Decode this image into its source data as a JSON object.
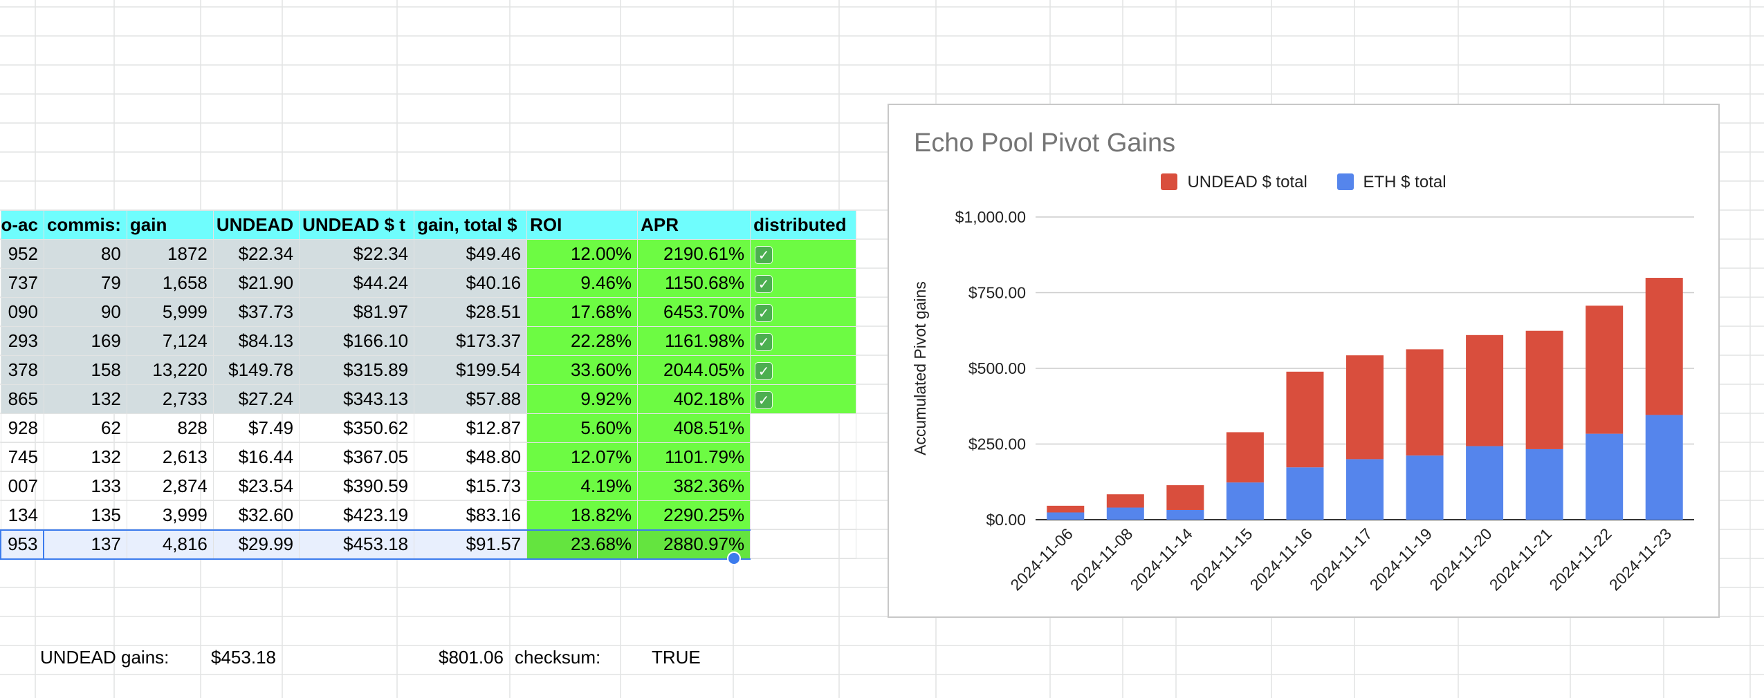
{
  "sheet": {
    "headers": [
      "o-ac",
      "commis:",
      "gain",
      "UNDEAD",
      "UNDEAD $ t",
      "gain, total $",
      "ROI",
      "APR",
      "distributed"
    ],
    "rows": [
      {
        "a": "952",
        "b": "80",
        "c": "1872",
        "d": "$22.34",
        "e": "$22.34",
        "f": "$49.46",
        "roi": "12.00%",
        "apr": "2190.61%",
        "dist": true
      },
      {
        "a": "737",
        "b": "79",
        "c": "1,658",
        "d": "$21.90",
        "e": "$44.24",
        "f": "$40.16",
        "roi": "9.46%",
        "apr": "1150.68%",
        "dist": true
      },
      {
        "a": "090",
        "b": "90",
        "c": "5,999",
        "d": "$37.73",
        "e": "$81.97",
        "f": "$28.51",
        "roi": "17.68%",
        "apr": "6453.70%",
        "dist": true
      },
      {
        "a": "293",
        "b": "169",
        "c": "7,124",
        "d": "$84.13",
        "e": "$166.10",
        "f": "$173.37",
        "roi": "22.28%",
        "apr": "1161.98%",
        "dist": true
      },
      {
        "a": "378",
        "b": "158",
        "c": "13,220",
        "d": "$149.78",
        "e": "$315.89",
        "f": "$199.54",
        "roi": "33.60%",
        "apr": "2044.05%",
        "dist": true
      },
      {
        "a": "865",
        "b": "132",
        "c": "2,733",
        "d": "$27.24",
        "e": "$343.13",
        "f": "$57.88",
        "roi": "9.92%",
        "apr": "402.18%",
        "dist": true
      },
      {
        "a": "928",
        "b": "62",
        "c": "828",
        "d": "$7.49",
        "e": "$350.62",
        "f": "$12.87",
        "roi": "5.60%",
        "apr": "408.51%",
        "dist": false
      },
      {
        "a": "745",
        "b": "132",
        "c": "2,613",
        "d": "$16.44",
        "e": "$367.05",
        "f": "$48.80",
        "roi": "12.07%",
        "apr": "1101.79%",
        "dist": false
      },
      {
        "a": "007",
        "b": "133",
        "c": "2,874",
        "d": "$23.54",
        "e": "$390.59",
        "f": "$15.73",
        "roi": "4.19%",
        "apr": "382.36%",
        "dist": false
      },
      {
        "a": "134",
        "b": "135",
        "c": "3,999",
        "d": "$32.60",
        "e": "$423.19",
        "f": "$83.16",
        "roi": "18.82%",
        "apr": "2290.25%",
        "dist": false
      },
      {
        "a": "953",
        "b": "137",
        "c": "4,816",
        "d": "$29.99",
        "e": "$453.18",
        "f": "$91.57",
        "roi": "23.68%",
        "apr": "2880.97%",
        "dist": false
      }
    ],
    "footer": {
      "undead_label": "UNDEAD gains:",
      "undead_value": "$453.18",
      "total_value": "$801.06",
      "checksum_label": "checksum:",
      "checksum_value": "TRUE"
    },
    "colors": {
      "header": "#6ffdfd",
      "grey": "#d3dde0",
      "green": "#6dfb43",
      "selection": "#3b7bed"
    }
  },
  "checkbox_icon": "check-box-icon",
  "chart_data": {
    "type": "bar",
    "stacked": true,
    "title": "Echo Pool Pivot Gains",
    "xlabel": "",
    "ylabel": "Accumulated Pivot gains",
    "ylim": [
      0,
      1000
    ],
    "yticks": [
      "$0.00",
      "$250.00",
      "$500.00",
      "$750.00",
      "$1,000.00"
    ],
    "legend_position": "top",
    "grid": true,
    "categories": [
      "2024-11-06",
      "2024-11-08",
      "2024-11-14",
      "2024-11-15",
      "2024-11-16",
      "2024-11-17",
      "2024-11-19",
      "2024-11-20",
      "2024-11-21",
      "2024-11-22",
      "2024-11-23"
    ],
    "series": [
      {
        "name": "ETH $ total",
        "color": "#5585ec",
        "values": [
          24,
          40,
          32,
          123,
          173,
          200,
          212,
          243,
          233,
          284,
          346
        ]
      },
      {
        "name": "UNDEAD $ total",
        "color": "#d94e3d",
        "values": [
          22,
          44,
          82,
          166,
          316,
          343,
          351,
          367,
          391,
          423,
          453
        ]
      }
    ],
    "legend_order": [
      "UNDEAD $ total",
      "ETH $ total"
    ]
  }
}
